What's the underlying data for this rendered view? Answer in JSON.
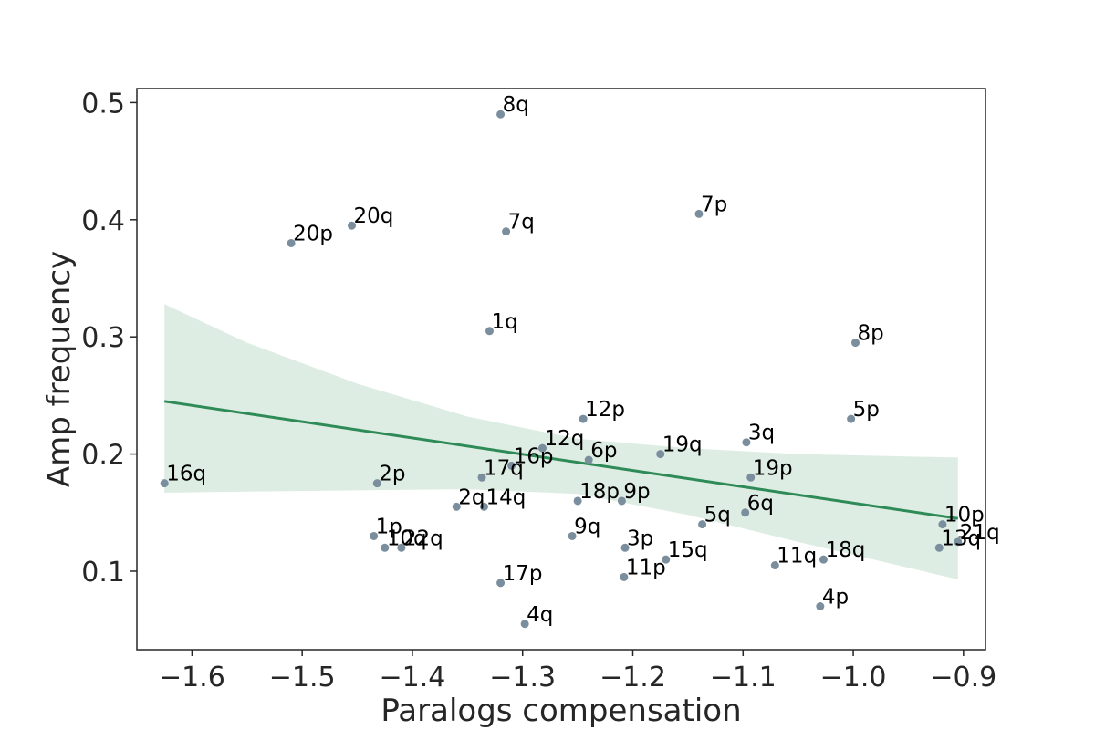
{
  "chart_data": {
    "type": "scatter",
    "title": "",
    "xlabel": "Paralogs compensation",
    "ylabel": "Amp frequency",
    "xlim": [
      -1.65,
      -0.88
    ],
    "ylim": [
      0.033,
      0.512
    ],
    "xticks": [
      -1.6,
      -1.5,
      -1.4,
      -1.3,
      -1.2,
      -1.1,
      -1.0,
      -0.9
    ],
    "xtick_labels": [
      "−1.6",
      "−1.5",
      "−1.4",
      "−1.3",
      "−1.2",
      "−1.1",
      "−1.0",
      "−0.9"
    ],
    "yticks": [
      0.1,
      0.2,
      0.3,
      0.4,
      0.5
    ],
    "ytick_labels": [
      "0.1",
      "0.2",
      "0.3",
      "0.4",
      "0.5"
    ],
    "grid": false,
    "colors": {
      "points": "#7b8e9e",
      "line": "#2e8b57",
      "band": "#deede3",
      "axes": "#262626"
    },
    "points": [
      {
        "label": "8q",
        "x": -1.32,
        "y": 0.49
      },
      {
        "label": "7p",
        "x": -1.14,
        "y": 0.405
      },
      {
        "label": "20q",
        "x": -1.455,
        "y": 0.395
      },
      {
        "label": "7q",
        "x": -1.315,
        "y": 0.39
      },
      {
        "label": "20p",
        "x": -1.51,
        "y": 0.38
      },
      {
        "label": "1q",
        "x": -1.33,
        "y": 0.305
      },
      {
        "label": "8p",
        "x": -0.998,
        "y": 0.295
      },
      {
        "label": "12p",
        "x": -1.245,
        "y": 0.23
      },
      {
        "label": "5p",
        "x": -1.002,
        "y": 0.23
      },
      {
        "label": "3q",
        "x": -1.097,
        "y": 0.21
      },
      {
        "label": "12q",
        "x": -1.282,
        "y": 0.205
      },
      {
        "label": "19q",
        "x": -1.175,
        "y": 0.2
      },
      {
        "label": "6p",
        "x": -1.24,
        "y": 0.195
      },
      {
        "label": "16p",
        "x": -1.31,
        "y": 0.19
      },
      {
        "label": "17q",
        "x": -1.337,
        "y": 0.18
      },
      {
        "label": "19p",
        "x": -1.093,
        "y": 0.18
      },
      {
        "label": "16q",
        "x": -1.625,
        "y": 0.175
      },
      {
        "label": "2p",
        "x": -1.432,
        "y": 0.175
      },
      {
        "label": "18p",
        "x": -1.25,
        "y": 0.16
      },
      {
        "label": "9p",
        "x": -1.21,
        "y": 0.16
      },
      {
        "label": "2q",
        "x": -1.36,
        "y": 0.155
      },
      {
        "label": "14q",
        "x": -1.335,
        "y": 0.155
      },
      {
        "label": "6q",
        "x": -1.098,
        "y": 0.15
      },
      {
        "label": "5q",
        "x": -1.137,
        "y": 0.14
      },
      {
        "label": "10p",
        "x": -0.919,
        "y": 0.14
      },
      {
        "label": "1p",
        "x": -1.435,
        "y": 0.13
      },
      {
        "label": "9q",
        "x": -1.255,
        "y": 0.13
      },
      {
        "label": "21q",
        "x": -0.905,
        "y": 0.125
      },
      {
        "label": "10q",
        "x": -1.425,
        "y": 0.12
      },
      {
        "label": "22q",
        "x": -1.41,
        "y": 0.12
      },
      {
        "label": "3p",
        "x": -1.207,
        "y": 0.12
      },
      {
        "label": "13q",
        "x": -0.922,
        "y": 0.12
      },
      {
        "label": "15q",
        "x": -1.17,
        "y": 0.11
      },
      {
        "label": "18q",
        "x": -1.027,
        "y": 0.11
      },
      {
        "label": "11q",
        "x": -1.071,
        "y": 0.105
      },
      {
        "label": "11p",
        "x": -1.208,
        "y": 0.095
      },
      {
        "label": "17p",
        "x": -1.32,
        "y": 0.09
      },
      {
        "label": "4p",
        "x": -1.03,
        "y": 0.07
      },
      {
        "label": "4q",
        "x": -1.298,
        "y": 0.055
      }
    ],
    "regression": {
      "x_range": [
        -1.625,
        -0.905
      ],
      "line": [
        [
          -1.625,
          0.245
        ],
        [
          -0.905,
          0.145
        ]
      ],
      "ci_upper": [
        [
          -1.625,
          0.328
        ],
        [
          -1.55,
          0.295
        ],
        [
          -1.45,
          0.26
        ],
        [
          -1.35,
          0.232
        ],
        [
          -1.25,
          0.213
        ],
        [
          -1.15,
          0.205
        ],
        [
          -1.05,
          0.2
        ],
        [
          -0.905,
          0.197
        ]
      ],
      "ci_lower": [
        [
          -1.625,
          0.167
        ],
        [
          -1.55,
          0.168
        ],
        [
          -1.45,
          0.169
        ],
        [
          -1.35,
          0.17
        ],
        [
          -1.25,
          0.166
        ],
        [
          -1.15,
          0.148
        ],
        [
          -1.05,
          0.125
        ],
        [
          -0.905,
          0.093
        ]
      ]
    }
  }
}
